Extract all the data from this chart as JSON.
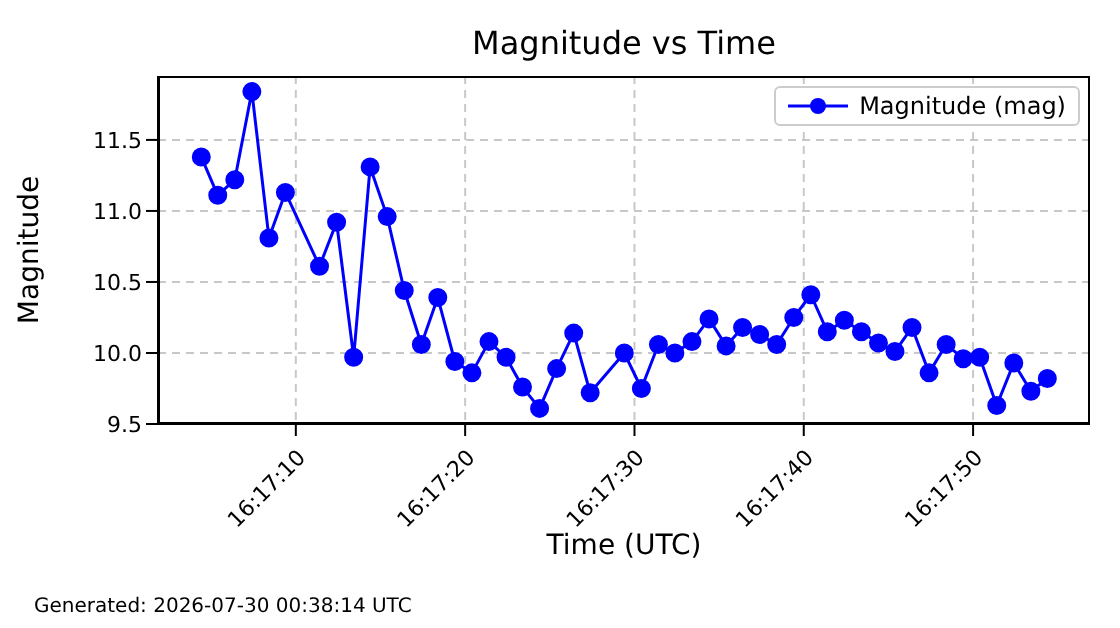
{
  "chart_data": {
    "type": "line",
    "title": "Magnitude vs Time",
    "xlabel": "Time (UTC)",
    "ylabel": "Magnitude",
    "x": [
      16.28456,
      16.28483,
      16.28511,
      16.28539,
      16.28567,
      16.28594,
      16.2865,
      16.28678,
      16.28706,
      16.28733,
      16.28761,
      16.28789,
      16.28817,
      16.28844,
      16.28872,
      16.289,
      16.28928,
      16.28956,
      16.28983,
      16.29011,
      16.29039,
      16.29067,
      16.29094,
      16.2915,
      16.29178,
      16.29206,
      16.29233,
      16.29261,
      16.29289,
      16.29317,
      16.29344,
      16.29372,
      16.294,
      16.29428,
      16.29456,
      16.29483,
      16.29511,
      16.29539,
      16.29567,
      16.29594,
      16.29622,
      16.2965,
      16.29678,
      16.29706,
      16.29733,
      16.29761,
      16.29789,
      16.29817,
      16.29844
    ],
    "series": [
      {
        "name": "Magnitude (mag)",
        "color": "#0000ff",
        "values": [
          11.38,
          11.11,
          11.22,
          11.84,
          10.81,
          11.13,
          10.61,
          10.92,
          9.97,
          11.31,
          10.96,
          10.44,
          10.06,
          10.39,
          9.94,
          9.86,
          10.08,
          9.97,
          9.76,
          9.61,
          9.89,
          10.14,
          9.72,
          10.0,
          9.75,
          10.06,
          10.0,
          10.08,
          10.24,
          10.05,
          10.18,
          10.13,
          10.06,
          10.25,
          10.41,
          10.15,
          10.23,
          10.15,
          10.07,
          10.01,
          10.18,
          9.86,
          10.06,
          9.96,
          9.97,
          9.63,
          9.93,
          9.73,
          9.82
        ]
      }
    ],
    "xlim": [
      16.28385,
      16.29914
    ],
    "xticks": [
      {
        "value": 16.286111,
        "label": "16:17:10"
      },
      {
        "value": 16.288889,
        "label": "16:17:20"
      },
      {
        "value": 16.291667,
        "label": "16:17:30"
      },
      {
        "value": 16.294444,
        "label": "16:17:40"
      },
      {
        "value": 16.297222,
        "label": "16:17:50"
      }
    ],
    "ylim": [
      9.5,
      11.95
    ],
    "yticks": [
      9.5,
      {
        "value": 10,
        "label": "10.0"
      },
      10.5,
      {
        "value": 11,
        "label": "11.0"
      },
      11.5
    ],
    "grid": true,
    "legend": "top right",
    "marker": "circle",
    "line_style": "solid",
    "annotations": [
      "Generated: 2026-07-30 00:38:14 UTC"
    ]
  }
}
